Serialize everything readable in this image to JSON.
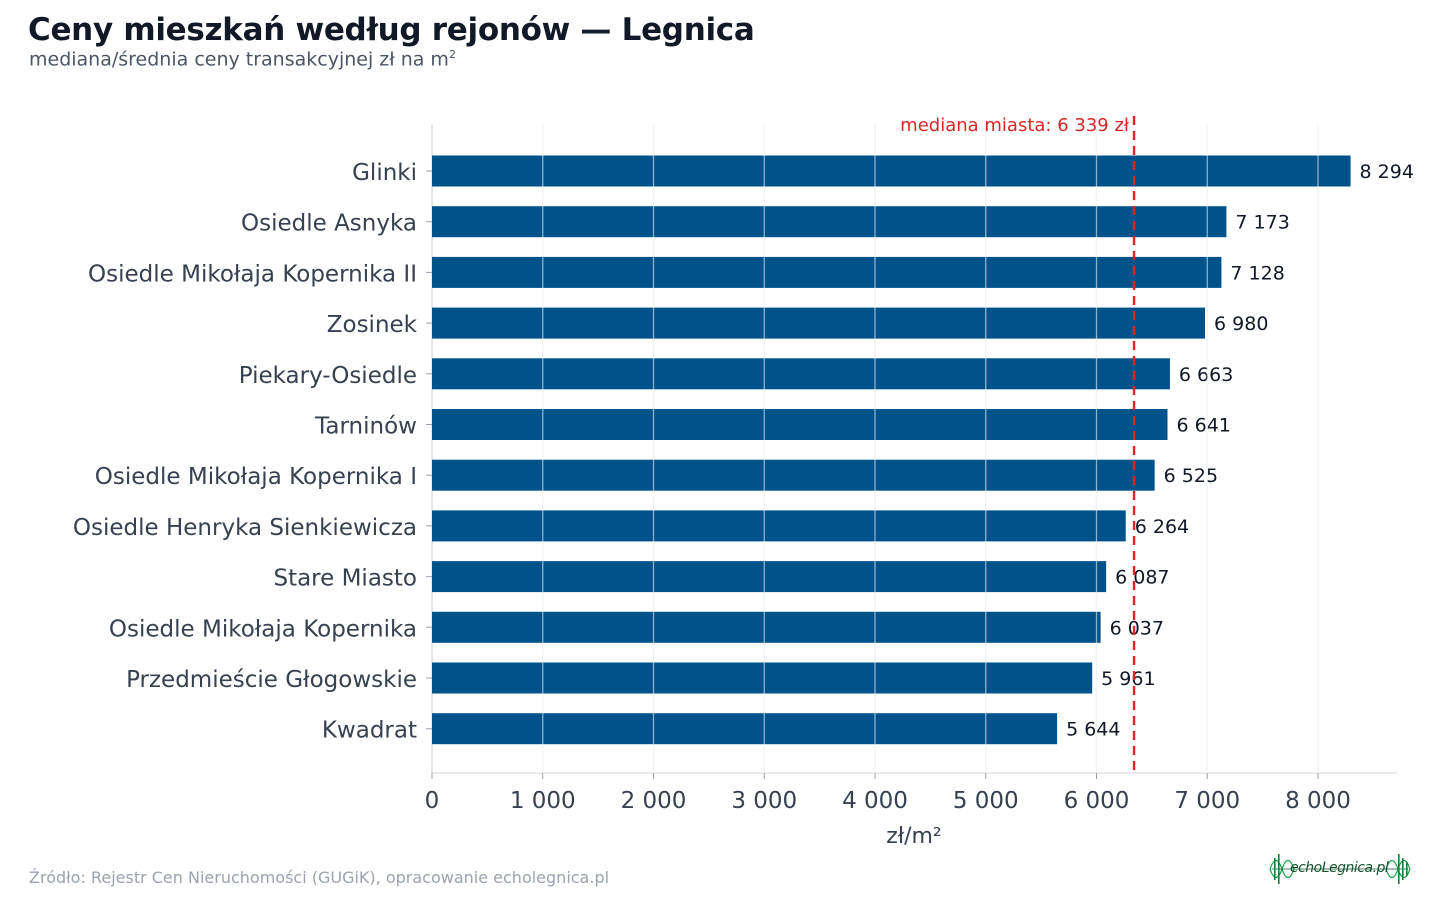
{
  "header": {
    "title": "Ceny mieszkań według rejonów — Legnica",
    "subtitle": "mediana/średnia ceny transakcyjnej zł na m",
    "subtitle_sup": "2"
  },
  "chart_data": {
    "type": "bar",
    "orientation": "horizontal",
    "categories": [
      "Glinki",
      "Osiedle Asnyka",
      "Osiedle Mikołaja Kopernika II",
      "Zosinek",
      "Piekary-Osiedle",
      "Tarninów",
      "Osiedle Mikołaja Kopernika I",
      "Osiedle Henryka Sienkiewicza",
      "Stare Miasto",
      "Osiedle Mikołaja Kopernika",
      "Przedmieście Głogowskie",
      "Kwadrat"
    ],
    "values": [
      8294,
      7173,
      7128,
      6980,
      6663,
      6641,
      6525,
      6264,
      6087,
      6037,
      5961,
      5644
    ],
    "value_labels": [
      "8 294",
      "7 173",
      "7 128",
      "6 980",
      "6 663",
      "6 641",
      "6 525",
      "6 264",
      "6 087",
      "6 037",
      "5 961",
      "5 644"
    ],
    "xlabel": "zł/m²",
    "xlim": [
      0,
      8700
    ],
    "xticks": [
      0,
      1000,
      2000,
      3000,
      4000,
      5000,
      6000,
      7000,
      8000
    ],
    "xtick_labels": [
      "0",
      "1 000",
      "2 000",
      "3 000",
      "4 000",
      "5 000",
      "6 000",
      "7 000",
      "8 000"
    ],
    "grid": "vertical",
    "reference_line": {
      "value": 6339,
      "label": "mediana miasta: 6 339 zł",
      "style": "dashed"
    },
    "colors": {
      "bar": "#00538a",
      "reference": "#dc2626",
      "grid": "#e5e7eb"
    }
  },
  "footer": {
    "source": "Źródło: Rejestr Cen Nieruchomości (GUGiK), opracowanie echolegnica.pl",
    "logo_text": "echoLegnica.pl"
  }
}
